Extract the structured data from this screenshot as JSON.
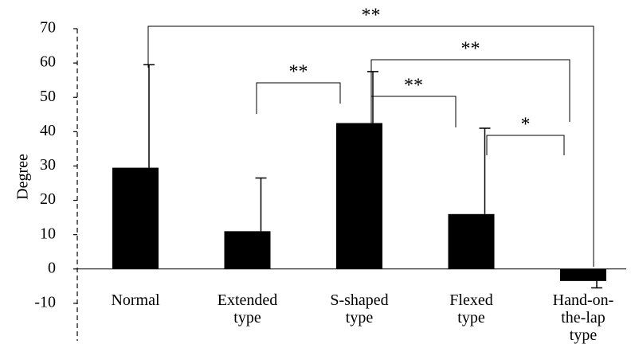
{
  "chart_data": {
    "type": "bar",
    "y_label": "Degree",
    "categories": [
      "Normal",
      "Extended\ntype",
      "S-shaped\ntype",
      "Flexed\ntype",
      "Hand-on-\nthe-lap\ntype"
    ],
    "values": [
      29.5,
      11,
      42.5,
      16,
      -3.5
    ],
    "errors": [
      30,
      15.5,
      15,
      25,
      2
    ],
    "color": "#000000",
    "ylim": [
      -20,
      70
    ],
    "yticks": [
      -10,
      0,
      10,
      20,
      30,
      40,
      50,
      60,
      70
    ],
    "annotations": [
      {
        "text": "**"
      },
      {
        "text": "**"
      },
      {
        "text": "**"
      },
      {
        "text": "**"
      },
      {
        "text": "*"
      }
    ]
  }
}
